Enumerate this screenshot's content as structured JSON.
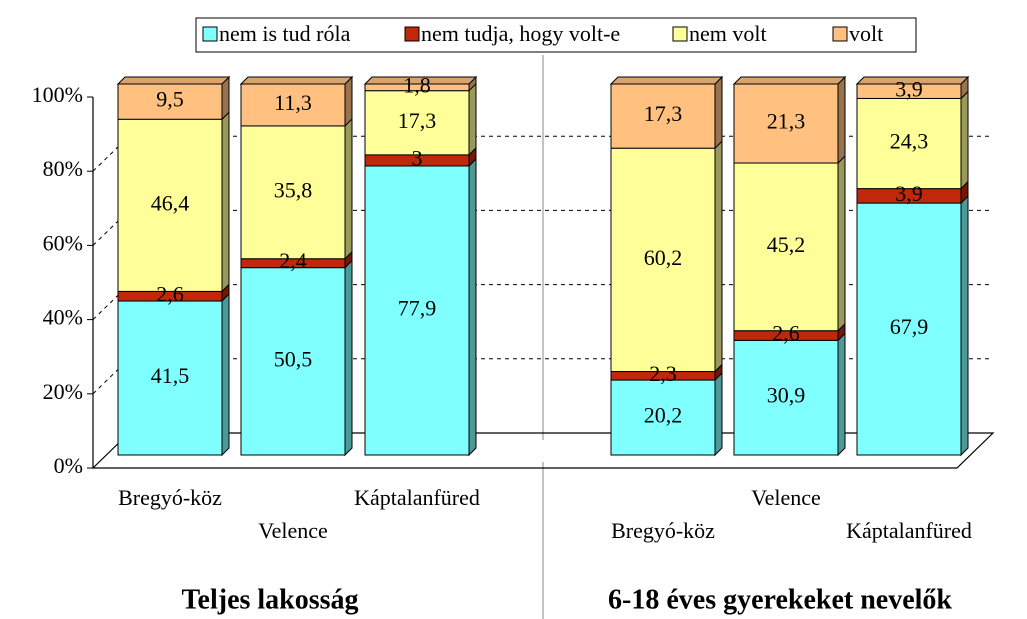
{
  "chart_data": {
    "type": "bar",
    "stacked": true,
    "groups": [
      {
        "title": "Teljes lakosság",
        "categories": [
          "Bregyó-köz",
          "Velence",
          "Káptalanfüred"
        ]
      },
      {
        "title": "6-18 éves gyerekeket nevelők",
        "categories": [
          "Bregyó-köz",
          "Velence",
          "Káptalanfüred"
        ]
      }
    ],
    "series": [
      {
        "name": "nem is tud róla",
        "color": "#80ffff",
        "values": [
          41.5,
          50.5,
          77.9,
          20.2,
          30.9,
          67.9
        ],
        "value_labels": [
          "41,5",
          "50,5",
          "77,9",
          "20,2",
          "30,9",
          "67,9"
        ]
      },
      {
        "name": "nem tudja, hogy volt-e",
        "color": "#c0280c",
        "values": [
          2.6,
          2.4,
          3,
          2.3,
          2.6,
          3.9
        ],
        "value_labels": [
          "2,6",
          "2,4",
          "3",
          "2,3",
          "2,6",
          "3,9"
        ]
      },
      {
        "name": "nem volt",
        "color": "#ffff99",
        "values": [
          46.4,
          35.8,
          17.3,
          60.2,
          45.2,
          24.3
        ],
        "value_labels": [
          "46,4",
          "35,8",
          "17,3",
          "60,2",
          "45,2",
          "24,3"
        ]
      },
      {
        "name": "volt",
        "color": "#ffc080",
        "values": [
          9.5,
          11.3,
          1.8,
          17.3,
          21.3,
          3.9
        ],
        "value_labels": [
          "9,5",
          "11,3",
          "1,8",
          "17,3",
          "21,3",
          "3,9"
        ]
      }
    ],
    "ylim": [
      0,
      100
    ],
    "yticks": [
      {
        "value": 0,
        "label": "0%"
      },
      {
        "value": 20,
        "label": "20%"
      },
      {
        "value": 40,
        "label": "40%"
      },
      {
        "value": 60,
        "label": "60%"
      },
      {
        "value": 80,
        "label": "80%"
      },
      {
        "value": 100,
        "label": "100%"
      }
    ],
    "grid": true,
    "legend": "top"
  }
}
